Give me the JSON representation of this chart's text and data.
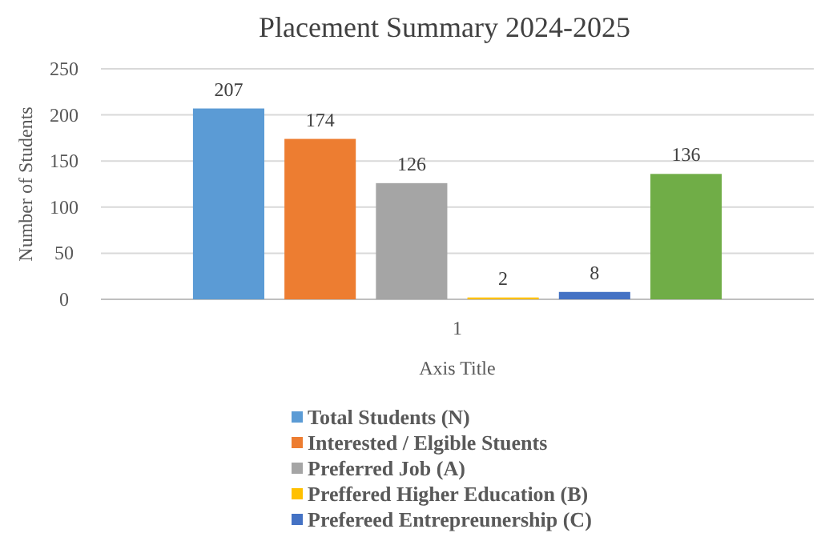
{
  "chart_data": {
    "type": "bar",
    "title": "Placement Summary 2024-2025",
    "xlabel": "Axis Title",
    "ylabel": "Number of Students",
    "categories": [
      "1"
    ],
    "series": [
      {
        "name": "Total Students (N)",
        "color": "#5b9bd5",
        "values": [
          207
        ]
      },
      {
        "name": "Interested / Elgible Stuents",
        "color": "#ed7d31",
        "values": [
          174
        ]
      },
      {
        "name": "Preferred Job (A)",
        "color": "#a5a5a5",
        "values": [
          126
        ]
      },
      {
        "name": "Preffered Higher Education (B)",
        "color": "#ffc000",
        "values": [
          2
        ]
      },
      {
        "name": "Prefereed Entrepreunership (C)",
        "color": "#4472c4",
        "values": [
          8
        ]
      },
      {
        "color": "#70ad47",
        "values": [
          136
        ]
      }
    ],
    "ylim": [
      0,
      250
    ],
    "yticks": [
      0,
      50,
      100,
      150,
      200,
      250
    ],
    "grid": "y",
    "data_labels": true,
    "legend": "bottom"
  }
}
